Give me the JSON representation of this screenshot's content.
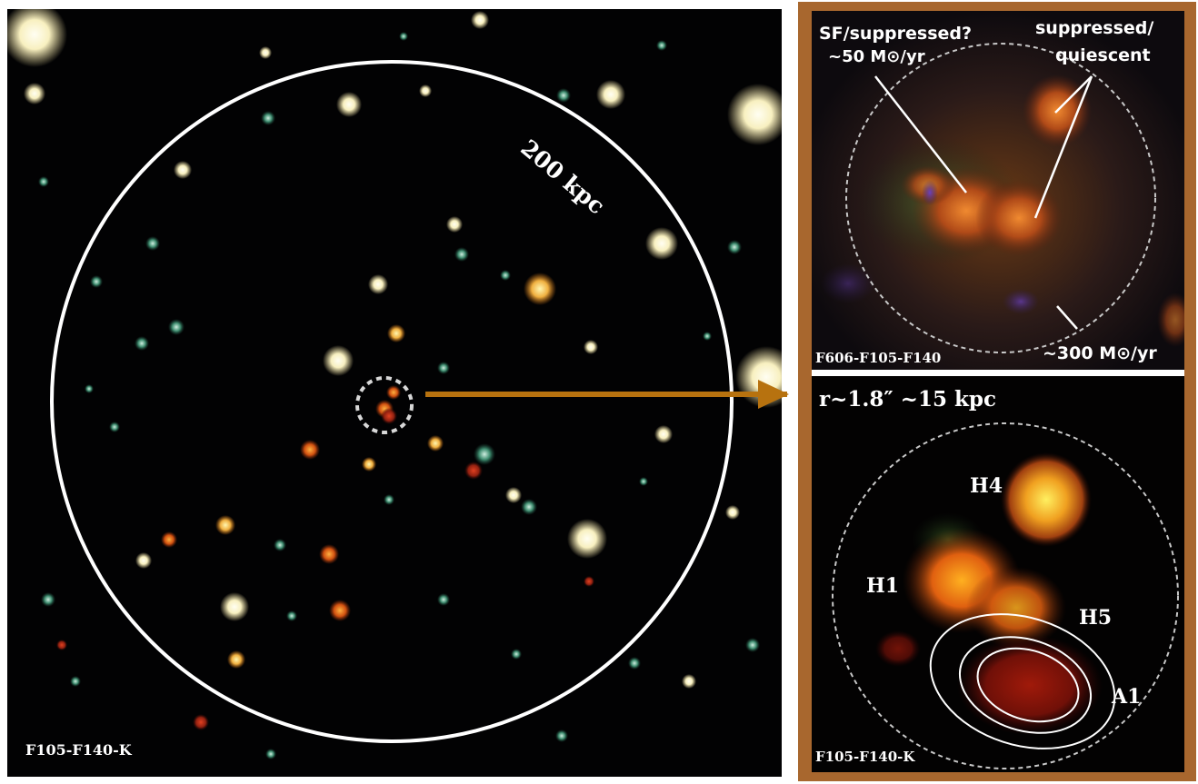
{
  "left_panel": {
    "scale_label": "200 kpc",
    "filter_label": "F105-F140-K"
  },
  "top_right_panel": {
    "label_sf": "SF/suppressed?",
    "label_sf_rate": "~50 M⊙/yr",
    "label_suppressed": "suppressed/",
    "label_quiescent": "quiescent",
    "label_rate_300": "~300 M⊙/yr",
    "filter_label": "F606-F105-F140"
  },
  "bottom_right_panel": {
    "radius_label": "r~1.8″ ~15 kpc",
    "source_h4": "H4",
    "source_h1": "H1",
    "source_h5": "H5",
    "source_a1": "A1",
    "filter_label": "F105-F140-K"
  },
  "colors": {
    "frame": "#a8672e",
    "arrow": "#b7720f",
    "circle": "#ffffff"
  }
}
